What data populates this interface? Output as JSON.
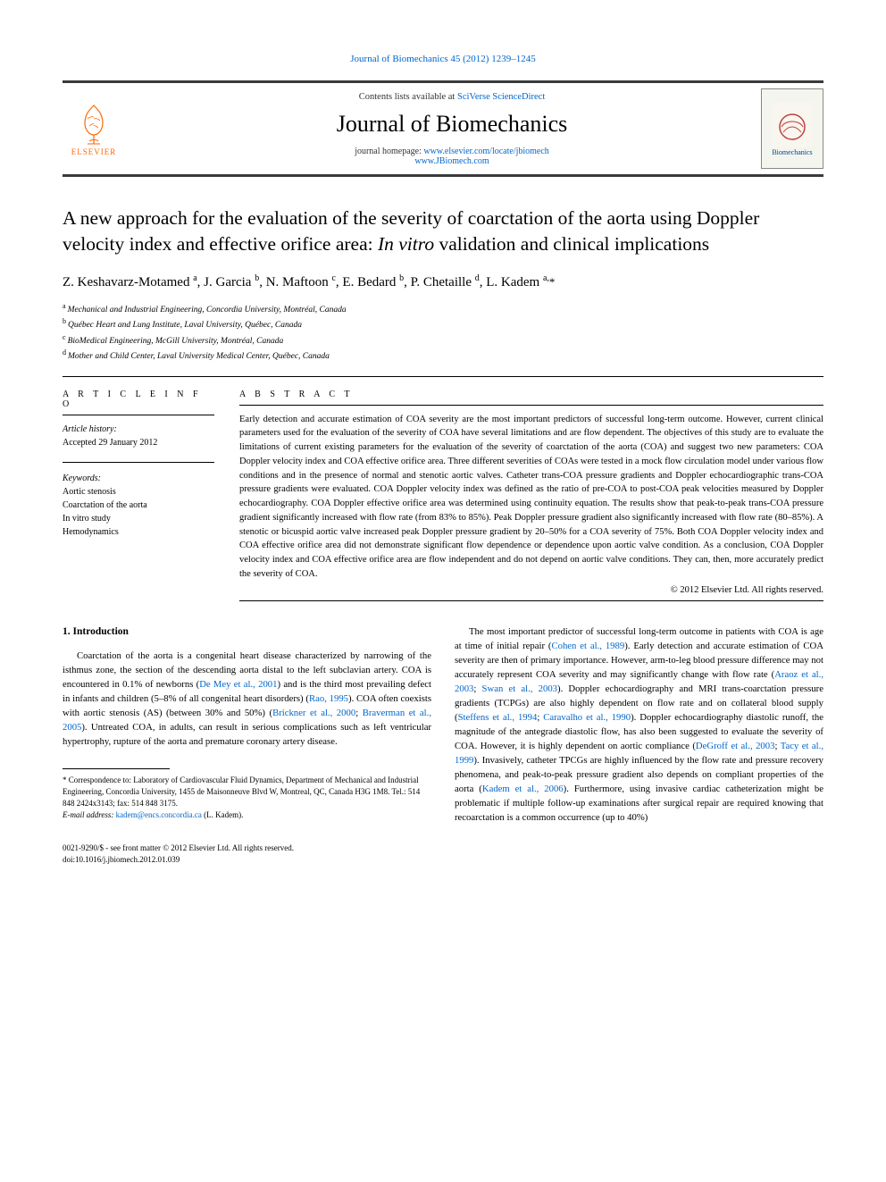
{
  "top_link": "Journal of Biomechanics 45 (2012) 1239–1245",
  "header": {
    "contents_prefix": "Contents lists available at ",
    "contents_link": "SciVerse ScienceDirect",
    "journal_name": "Journal of Biomechanics",
    "homepage_prefix": "journal homepage: ",
    "homepage_url1": "www.elsevier.com/locate/jbiomech",
    "homepage_url2": "www.JBiomech.com",
    "publisher_label": "ELSEVIER",
    "cover_label": "Biomechanics"
  },
  "article": {
    "title_plain": "A new approach for the evaluation of the severity of coarctation of the aorta using Doppler velocity index and effective orifice area: ",
    "title_italic": "In vitro",
    "title_tail": " validation and clinical implications",
    "authors_html": "Z. Keshavarz-Motamed <sup>a</sup>, J. Garcia <sup>b</sup>, N. Maftoon <sup>c</sup>, E. Bedard <sup>b</sup>, P. Chetaille <sup>d</sup>, L. Kadem <sup>a,</sup><span class='ast'>*</span>",
    "affiliations": [
      {
        "sup": "a",
        "text": "Mechanical and Industrial Engineering, Concordia University, Montréal, Canada"
      },
      {
        "sup": "b",
        "text": "Québec Heart and Lung Institute, Laval University, Québec, Canada"
      },
      {
        "sup": "c",
        "text": "BioMedical Engineering, McGill University, Montréal, Canada"
      },
      {
        "sup": "d",
        "text": "Mother and Child Center, Laval University Medical Center, Québec, Canada"
      }
    ]
  },
  "info": {
    "heading": "A R T I C L E   I N F O",
    "history_label": "Article history:",
    "history_value": "Accepted 29 January 2012",
    "keywords_label": "Keywords:",
    "keywords": [
      "Aortic stenosis",
      "Coarctation of the aorta",
      "In vitro study",
      "Hemodynamics"
    ]
  },
  "abstract": {
    "heading": "A B S T R A C T",
    "text": "Early detection and accurate estimation of COA severity are the most important predictors of successful long-term outcome. However, current clinical parameters used for the evaluation of the severity of COA have several limitations and are flow dependent. The objectives of this study are to evaluate the limitations of current existing parameters for the evaluation of the severity of coarctation of the aorta (COA) and suggest two new parameters: COA Doppler velocity index and COA effective orifice area. Three different severities of COAs were tested in a mock flow circulation model under various flow conditions and in the presence of normal and stenotic aortic valves. Catheter trans-COA pressure gradients and Doppler echocardiographic trans-COA pressure gradients were evaluated. COA Doppler velocity index was defined as the ratio of pre-COA to post-COA peak velocities measured by Doppler echocardiography. COA Doppler effective orifice area was determined using continuity equation. The results show that peak-to-peak trans-COA pressure gradient significantly increased with flow rate (from 83% to 85%). Peak Doppler pressure gradient also significantly increased with flow rate (80–85%). A stenotic or bicuspid aortic valve increased peak Doppler pressure gradient by 20–50% for a COA severity of 75%. Both COA Doppler velocity index and COA effective orifice area did not demonstrate significant flow dependence or dependence upon aortic valve condition. As a conclusion, COA Doppler velocity index and COA effective orifice area are flow independent and do not depend on aortic valve conditions. They can, then, more accurately predict the severity of COA.",
    "copyright": "© 2012 Elsevier Ltd. All rights reserved."
  },
  "body": {
    "section_number": "1.",
    "section_title": "Introduction",
    "col1_p1_a": "Coarctation of the aorta is a congenital heart disease characterized by narrowing of the isthmus zone, the section of the descending aorta distal to the left subclavian artery. COA is encountered in 0.1% of newborns (",
    "col1_p1_l1": "De Mey et al., 2001",
    "col1_p1_b": ") and is the third most prevailing defect in infants and children (5–8% of all congenital heart disorders) (",
    "col1_p1_l2": "Rao, 1995",
    "col1_p1_c": "). COA often coexists with aortic stenosis (AS) (between 30% and 50%) (",
    "col1_p1_l3": "Brickner et al., 2000",
    "col1_p1_d": "; ",
    "col1_p1_l4": "Braverman et al., 2005",
    "col1_p1_e": "). Untreated COA, in adults, can result in serious complications such as left ventricular hypertrophy, rupture of the aorta and premature coronary artery disease.",
    "col2_p1_a": "The most important predictor of successful long-term outcome in patients with COA is age at time of initial repair (",
    "col2_p1_l1": "Cohen et al., 1989",
    "col2_p1_b": "). Early detection and accurate estimation of COA severity are then of primary importance. However, arm-to-leg blood pressure difference may not accurately represent COA severity and may significantly change with flow rate (",
    "col2_p1_l2": "Araoz et al., 2003",
    "col2_p1_c": "; ",
    "col2_p1_l3": "Swan et al., 2003",
    "col2_p1_d": "). Doppler echocardiography and MRI trans-coarctation pressure gradients (TCPGs) are also highly dependent on flow rate and on collateral blood supply (",
    "col2_p1_l4": "Steffens et al., 1994",
    "col2_p1_e": "; ",
    "col2_p1_l5": "Caravalho et al., 1990",
    "col2_p1_f": "). Doppler echocardiography diastolic runoff, the magnitude of the antegrade diastolic flow, has also been suggested to evaluate the severity of COA. However, it is highly dependent on aortic compliance (",
    "col2_p1_l6": "DeGroff et al., 2003",
    "col2_p1_g": "; ",
    "col2_p1_l7": "Tacy et al., 1999",
    "col2_p1_h": "). Invasively, catheter TPCGs are highly influenced by the flow rate and pressure recovery phenomena, and peak-to-peak pressure gradient also depends on compliant properties of the aorta (",
    "col2_p1_l8": "Kadem et al., 2006",
    "col2_p1_i": "). Furthermore, using invasive cardiac catheterization might be problematic if multiple follow-up examinations after surgical repair are required knowing that recoarctation is a common occurrence (up to 40%)"
  },
  "footnote": {
    "corr_a": "Correspondence to: Laboratory of Cardiovascular Fluid Dynamics, Department of Mechanical and Industrial Engineering, Concordia University, 1455 de Maisonneuve Blvd W, Montreal, QC, Canada H3G 1M8. Tel.: 514 848 2424x3143; fax: 514 848 3175.",
    "email_label": "E-mail address: ",
    "email": "kadem@encs.concordia.ca",
    "email_tail": " (L. Kadem)."
  },
  "footer": {
    "left1": "0021-9290/$ - see front matter © 2012 Elsevier Ltd. All rights reserved.",
    "left2": "doi:10.1016/j.jbiomech.2012.01.039"
  },
  "colors": {
    "link": "#0066cc",
    "elsevier_orange": "#ff6600",
    "rule": "#3a3a3a"
  }
}
